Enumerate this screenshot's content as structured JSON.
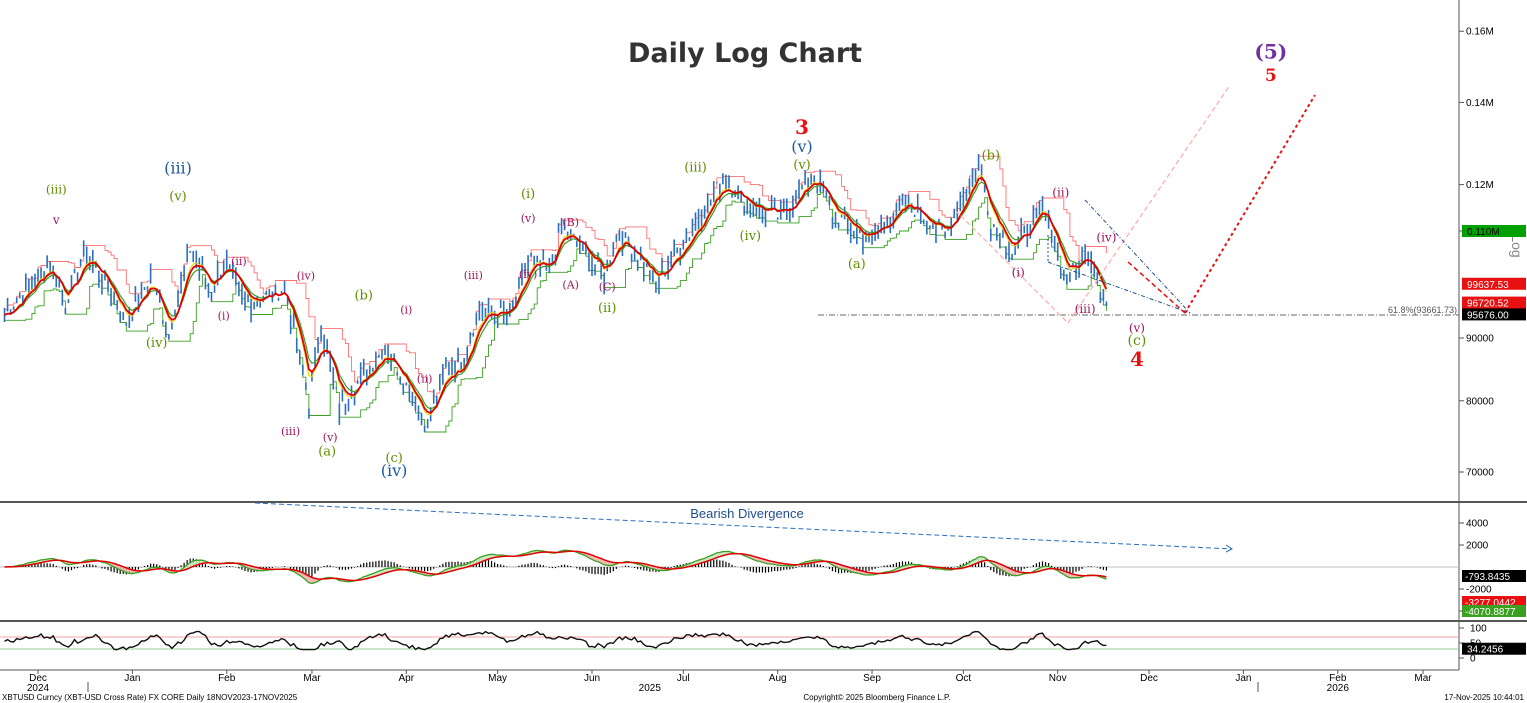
{
  "chart_title": "Daily Log Chart",
  "axis_side_label": "Log",
  "x_axis": {
    "months": [
      "Dec",
      "Jan",
      "Feb",
      "Mar",
      "Apr",
      "May",
      "Jun",
      "Jul",
      "Aug",
      "Sep",
      "Oct",
      "Nov",
      "Dec",
      "Jan",
      "Feb",
      "Mar"
    ],
    "years": [
      "2024",
      "2025",
      "2026"
    ]
  },
  "price_axis": {
    "ticks": [
      "0.16M",
      "0.14M",
      "0.12M",
      "0.110M",
      "90000",
      "80000",
      "70000"
    ]
  },
  "price_badges": [
    {
      "text": "0.110M",
      "bg": "#00a000",
      "fg": "#000"
    },
    {
      "text": "99637.53",
      "bg": "#e81010",
      "fg": "#fff"
    },
    {
      "text": "96720.52",
      "bg": "#e81010",
      "fg": "#fff"
    },
    {
      "text": "95676.00",
      "bg": "#000000",
      "fg": "#fff"
    }
  ],
  "fib_label": "61.8%(93661.73)",
  "macd_axis": {
    "ticks": [
      "4000",
      "2000",
      "-2000",
      "4000"
    ]
  },
  "macd_badges": [
    {
      "text": "-793.8435",
      "bg": "#000000",
      "fg": "#fff"
    },
    {
      "text": "-3277.0442",
      "bg": "#e81010",
      "fg": "#fff"
    },
    {
      "text": "-4070.8877",
      "bg": "#3aa020",
      "fg": "#fff"
    }
  ],
  "divergence_label": "Bearish Divergence",
  "rsi_axis": {
    "ticks": [
      "100",
      "50",
      "0"
    ]
  },
  "rsi_badge": {
    "text": "34.2456",
    "bg": "#000000",
    "fg": "#fff"
  },
  "footer": {
    "left": "XBTUSD Curncy (XBT-USD Cross Rate) FX CORE Daily 18NOV2023-17NOV2025",
    "center": "Copyright© 2025 Bloomberg Finance L.P.",
    "right": "17-Nov-2025 10:44:01"
  },
  "colors": {
    "ma": "#e00000",
    "bar": "#2c6fbe",
    "green_line": "#3aa020",
    "pink_line": "#ff6060"
  },
  "wave_labels": [
    {
      "text": "(iii)",
      "date": "2024-12-07",
      "price": 118000,
      "color": "#5f8f00",
      "size": 12
    },
    {
      "text": "v",
      "date": "2024-12-07",
      "price": 111500,
      "color": "#a0145a",
      "size": 12
    },
    {
      "text": "(iii)",
      "date": "2025-01-16",
      "price": 122500,
      "color": "#1e5aa0",
      "size": 16
    },
    {
      "text": "(v)",
      "date": "2025-01-16",
      "price": 116500,
      "color": "#5f8f00",
      "size": 13
    },
    {
      "text": "(iv)",
      "date": "2025-01-09",
      "price": 88500,
      "color": "#5f8f00",
      "size": 13
    },
    {
      "text": "(ii)",
      "date": "2025-02-05",
      "price": 103200,
      "color": "#a0145a",
      "size": 11
    },
    {
      "text": "(i)",
      "date": "2025-01-31",
      "price": 93200,
      "color": "#a0145a",
      "size": 11
    },
    {
      "text": "(iv)",
      "date": "2025-02-27",
      "price": 100400,
      "color": "#a0145a",
      "size": 11
    },
    {
      "text": "(iii)",
      "date": "2025-02-22",
      "price": 75000,
      "color": "#a0145a",
      "size": 11
    },
    {
      "text": "(v)",
      "date": "2025-03-07",
      "price": 74200,
      "color": "#a0145a",
      "size": 11
    },
    {
      "text": "(a)",
      "date": "2025-03-06",
      "price": 72200,
      "color": "#5f8f00",
      "size": 13
    },
    {
      "text": "(b)",
      "date": "2025-03-18",
      "price": 96700,
      "color": "#5f8f00",
      "size": 13
    },
    {
      "text": "(i)",
      "date": "2025-04-01",
      "price": 94200,
      "color": "#a0145a",
      "size": 11
    },
    {
      "text": "(ii)",
      "date": "2025-04-07",
      "price": 82800,
      "color": "#a0145a",
      "size": 11
    },
    {
      "text": "(c)",
      "date": "2025-03-28",
      "price": 71300,
      "color": "#5f8f00",
      "size": 13
    },
    {
      "text": "(iv)",
      "date": "2025-03-28",
      "price": 69500,
      "color": "#1e5aa0",
      "size": 16
    },
    {
      "text": "(iii)",
      "date": "2025-04-23",
      "price": 100500,
      "color": "#a0145a",
      "size": 11
    },
    {
      "text": "(i)",
      "date": "2025-05-11",
      "price": 117000,
      "color": "#5f8f00",
      "size": 13
    },
    {
      "text": "(v)",
      "date": "2025-05-11",
      "price": 111900,
      "color": "#a0145a",
      "size": 11
    },
    {
      "text": "(iv)",
      "date": "2025-05-11",
      "price": 100700,
      "color": "#a0145a",
      "size": 11
    },
    {
      "text": "(B)",
      "date": "2025-05-25",
      "price": 111000,
      "color": "#a0145a",
      "size": 11
    },
    {
      "text": "(A)",
      "date": "2025-05-25",
      "price": 98800,
      "color": "#a0145a",
      "size": 11
    },
    {
      "text": "(C)",
      "date": "2025-06-06",
      "price": 98400,
      "color": "#a0145a",
      "size": 11
    },
    {
      "text": "(ii)",
      "date": "2025-06-06",
      "price": 94500,
      "color": "#5f8f00",
      "size": 13
    },
    {
      "text": "(iii)",
      "date": "2025-07-05",
      "price": 123000,
      "color": "#5f8f00",
      "size": 13
    },
    {
      "text": "3",
      "date": "2025-08-09",
      "price": 131900,
      "color": "#e81010",
      "size": 20
    },
    {
      "text": "(v)",
      "date": "2025-08-09",
      "price": 127600,
      "color": "#1e5aa0",
      "size": 16
    },
    {
      "text": "(v)",
      "date": "2025-08-09",
      "price": 123600,
      "color": "#5f8f00",
      "size": 13
    },
    {
      "text": "(iv)",
      "date": "2025-07-23",
      "price": 108200,
      "color": "#5f8f00",
      "size": 13
    },
    {
      "text": "(a)",
      "date": "2025-08-27",
      "price": 102600,
      "color": "#5f8f00",
      "size": 13
    },
    {
      "text": "(b)",
      "date": "2025-10-10",
      "price": 125800,
      "color": "#5f8f00",
      "size": 13
    },
    {
      "text": "(ii)",
      "date": "2025-11-02",
      "price": 117300,
      "color": "#a0145a",
      "size": 12
    },
    {
      "text": "(iv)",
      "date": "2025-11-17",
      "price": 107900,
      "color": "#a0145a",
      "size": 12
    },
    {
      "text": "(i)",
      "date": "2025-10-19",
      "price": 101000,
      "color": "#a0145a",
      "size": 12
    },
    {
      "text": "(iii)",
      "date": "2025-11-10",
      "price": 94300,
      "color": "#a0145a",
      "size": 12
    },
    {
      "text": "(v)",
      "date": "2025-11-27",
      "price": 91000,
      "color": "#a0145a",
      "size": 12
    },
    {
      "text": "(c)",
      "date": "2025-11-27",
      "price": 88800,
      "color": "#5f8f00",
      "size": 14
    },
    {
      "text": "4",
      "date": "2025-11-27",
      "price": 85400,
      "color": "#e81010",
      "size": 20
    },
    {
      "text": "(5)",
      "date": "2026-01-10",
      "price": 152000,
      "color": "#7030a0",
      "size": 20
    },
    {
      "text": "5",
      "date": "2026-01-10",
      "price": 145800,
      "color": "#e81010",
      "size": 17
    }
  ]
}
